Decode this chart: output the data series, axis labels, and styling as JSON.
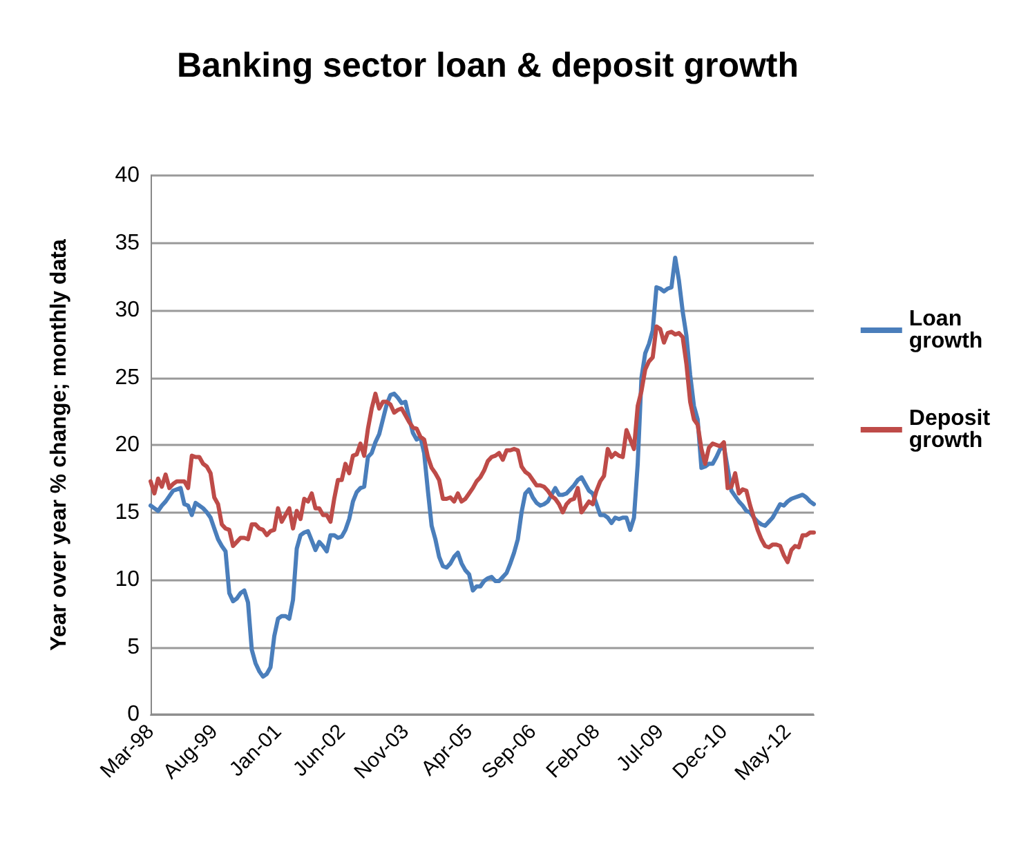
{
  "chart_data": {
    "type": "line",
    "title": "Banking sector loan & deposit growth",
    "ylabel": "Year over year % change; monthly data",
    "categories": [
      "Mar-98",
      null,
      null,
      null,
      null,
      null,
      null,
      null,
      null,
      null,
      null,
      null,
      null,
      null,
      null,
      null,
      null,
      "Aug-99",
      null,
      null,
      null,
      null,
      null,
      null,
      null,
      null,
      null,
      null,
      null,
      null,
      null,
      null,
      null,
      null,
      "Jan-01",
      null,
      null,
      null,
      null,
      null,
      null,
      null,
      null,
      null,
      null,
      null,
      null,
      null,
      null,
      null,
      null,
      "Jun-02",
      null,
      null,
      null,
      null,
      null,
      null,
      null,
      null,
      null,
      null,
      null,
      null,
      null,
      null,
      null,
      null,
      "Nov-03",
      null,
      null,
      null,
      null,
      null,
      null,
      null,
      null,
      null,
      null,
      null,
      null,
      null,
      null,
      null,
      null,
      "Apr-05",
      null,
      null,
      null,
      null,
      null,
      null,
      null,
      null,
      null,
      null,
      null,
      null,
      null,
      null,
      null,
      null,
      "Sep-06",
      null,
      null,
      null,
      null,
      null,
      null,
      null,
      null,
      null,
      null,
      null,
      null,
      null,
      null,
      null,
      null,
      "Feb-08",
      null,
      null,
      null,
      null,
      null,
      null,
      null,
      null,
      null,
      null,
      null,
      null,
      null,
      null,
      null,
      null,
      "Jul-09",
      null,
      null,
      null,
      null,
      null,
      null,
      null,
      null,
      null,
      null,
      null,
      null,
      null,
      null,
      null,
      null,
      "Dec-10",
      null,
      null,
      null,
      null,
      null,
      null,
      null,
      null,
      null,
      null,
      null,
      null,
      null,
      null,
      null,
      null,
      "May-12",
      null,
      null,
      null,
      null,
      null,
      null,
      null
    ],
    "series": [
      {
        "name": "Loan growth",
        "color": "#4a7ebb",
        "values": [
          15.5,
          15.3,
          15.1,
          15.5,
          15.8,
          16.2,
          16.6,
          16.7,
          16.8,
          15.6,
          15.5,
          14.8,
          15.7,
          15.5,
          15.3,
          15,
          14.6,
          13.8,
          13,
          12.5,
          12.1,
          9,
          8.4,
          8.6,
          9,
          9.2,
          8.3,
          4.8,
          3.8,
          3.2,
          2.8,
          3,
          3.5,
          5.8,
          7.1,
          7.3,
          7.3,
          7.1,
          8.5,
          12.3,
          13.3,
          13.5,
          13.6,
          12.9,
          12.2,
          12.8,
          12.5,
          12.1,
          13.3,
          13.3,
          13.1,
          13.2,
          13.7,
          14.5,
          15.8,
          16.5,
          16.8,
          16.9,
          19.1,
          19.4,
          20.2,
          20.8,
          21.9,
          23,
          23.7,
          23.8,
          23.5,
          23.1,
          23.2,
          22,
          20.9,
          20.4,
          20.6,
          19.4,
          16.6,
          14,
          13,
          11.7,
          11,
          10.9,
          11.2,
          11.7,
          12,
          11.2,
          10.7,
          10.4,
          9.2,
          9.5,
          9.5,
          9.9,
          10.1,
          10.2,
          9.9,
          9.9,
          10.2,
          10.5,
          11.2,
          12,
          13,
          15,
          16.4,
          16.7,
          16.1,
          15.7,
          15.5,
          15.6,
          15.8,
          16.3,
          16.8,
          16.3,
          16.3,
          16.4,
          16.7,
          17,
          17.4,
          17.6,
          17.1,
          16.6,
          16.4,
          15.6,
          14.8,
          14.8,
          14.6,
          14.2,
          14.6,
          14.5,
          14.6,
          14.6,
          13.7,
          14.6,
          18.6,
          25,
          26.8,
          27.5,
          28.5,
          31.7,
          31.6,
          31.4,
          31.6,
          31.7,
          33.9,
          32.2,
          29.9,
          28.1,
          25.2,
          22.9,
          21.9,
          18.3,
          18.4,
          18.6,
          18.6,
          19.1,
          19.7,
          19.9,
          18.3,
          16.6,
          16.2,
          15.8,
          15.5,
          15.1,
          15,
          14.6,
          14.3,
          14.1,
          14,
          14.3,
          14.6,
          15.1,
          15.6,
          15.5,
          15.8,
          16,
          16.1,
          16.2,
          16.3,
          16.1,
          15.8,
          15.6
        ]
      },
      {
        "name": "Deposit growth",
        "color": "#be4b48",
        "values": [
          17.3,
          16.4,
          17.5,
          16.9,
          17.8,
          16.8,
          17.1,
          17.3,
          17.3,
          17.3,
          16.8,
          19.2,
          19.1,
          19.1,
          18.6,
          18.4,
          17.9,
          16.1,
          15.6,
          14.1,
          13.8,
          13.7,
          12.5,
          12.8,
          13.1,
          13.1,
          13,
          14.1,
          14.1,
          13.8,
          13.7,
          13.3,
          13.6,
          13.7,
          15.3,
          14.3,
          14.8,
          15.3,
          13.8,
          15.1,
          14.5,
          16,
          15.8,
          16.4,
          15.3,
          15.3,
          14.8,
          14.8,
          14.3,
          16,
          17.4,
          17.4,
          18.6,
          17.9,
          19.2,
          19.3,
          20.1,
          19.2,
          21.2,
          22.7,
          23.8,
          22.7,
          23.2,
          23.2,
          23,
          22.4,
          22.6,
          22.7,
          22.2,
          21.7,
          21.3,
          21.2,
          20.6,
          20.4,
          19.1,
          18.3,
          17.9,
          17.4,
          16,
          16,
          16.1,
          15.8,
          16.4,
          15.8,
          16,
          16.4,
          16.8,
          17.3,
          17.6,
          18.1,
          18.8,
          19.1,
          19.2,
          19.4,
          18.9,
          19.6,
          19.6,
          19.7,
          19.6,
          18.4,
          18,
          17.8,
          17.4,
          17,
          17,
          16.9,
          16.6,
          16.2,
          16,
          15.6,
          15,
          15.6,
          15.9,
          16,
          16.8,
          15,
          15.4,
          15.8,
          15.6,
          16.6,
          17.3,
          17.7,
          19.7,
          19.1,
          19.4,
          19.2,
          19.1,
          21.1,
          20.4,
          19.7,
          22.9,
          24,
          25.6,
          26.2,
          26.5,
          28.8,
          28.6,
          27.6,
          28.3,
          28.4,
          28.2,
          28.3,
          28,
          26,
          23.2,
          21.9,
          21.5,
          19.7,
          18.6,
          19.8,
          20.1,
          20,
          19.9,
          20.2,
          16.8,
          16.9,
          17.9,
          16.4,
          16.7,
          16.6,
          15.5,
          14.6,
          13.7,
          13,
          12.5,
          12.4,
          12.6,
          12.6,
          12.5,
          11.8,
          11.3,
          12.2,
          12.5,
          12.4,
          13.3,
          13.3,
          13.5,
          13.5
        ]
      }
    ],
    "ylim": [
      0,
      40
    ],
    "yticks": [
      0,
      5,
      10,
      15,
      20,
      25,
      30,
      35,
      40
    ],
    "grid": "y",
    "legend": "right",
    "marker": "none",
    "line_style": "solid"
  }
}
